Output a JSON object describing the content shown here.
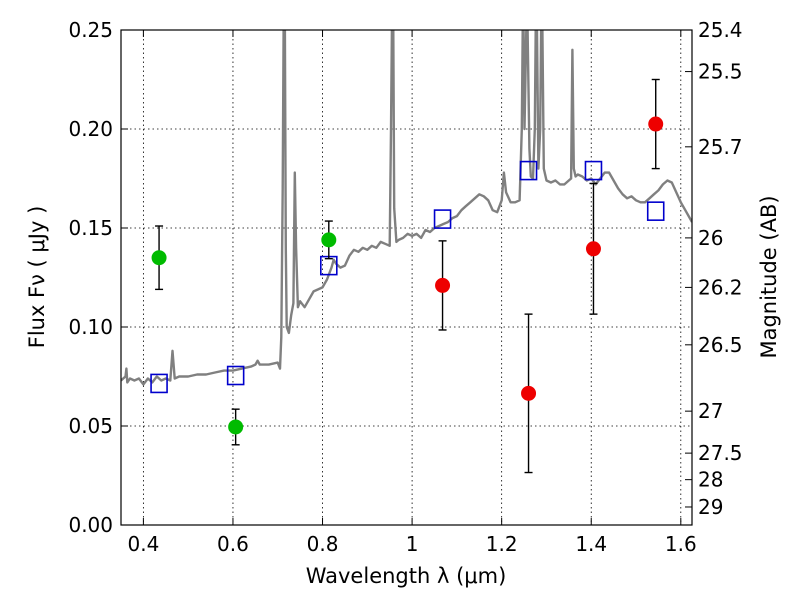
{
  "chart_data": {
    "type": "scatter",
    "xlabel": "Wavelength  λ (μm)",
    "ylabel": "Flux  Fν  ( μJy )",
    "y2label": "Magnitude (AB)",
    "xlim": [
      0.35,
      1.625
    ],
    "ylim": [
      0.0,
      0.25
    ],
    "grid": true,
    "x_ticks": [
      0.4,
      0.6,
      0.8,
      1.0,
      1.2,
      1.4,
      1.6
    ],
    "x_tick_labels": [
      "0.4",
      "0.6",
      "0.8",
      "1",
      "1.2",
      "1.4",
      "1.6"
    ],
    "y_ticks": [
      0.0,
      0.05,
      0.1,
      0.15,
      0.2,
      0.25
    ],
    "y_tick_labels": [
      "0.00",
      "0.05",
      "0.10",
      "0.15",
      "0.20",
      "0.25"
    ],
    "mag_ticks": [
      {
        "label": "25.4",
        "flux": 0.25
      },
      {
        "label": "25.5",
        "flux": 0.229
      },
      {
        "label": "25.7",
        "flux": 0.191
      },
      {
        "label": "26",
        "flux": 0.145
      },
      {
        "label": "26.2",
        "flux": 0.12
      },
      {
        "label": "26.5",
        "flux": 0.091
      },
      {
        "label": "27",
        "flux": 0.0575
      },
      {
        "label": "27.5",
        "flux": 0.0363
      },
      {
        "label": "28",
        "flux": 0.0229
      },
      {
        "label": "29",
        "flux": 0.0091
      }
    ],
    "series": [
      {
        "color": "#00bb00",
        "marker": "circle",
        "points": [
          {
            "x": 0.435,
            "y": 0.135,
            "err": 0.016
          },
          {
            "x": 0.606,
            "y": 0.0495,
            "err": 0.009
          },
          {
            "x": 0.814,
            "y": 0.144,
            "err": 0.0095
          }
        ]
      },
      {
        "color": "#ee0000",
        "marker": "circle",
        "points": [
          {
            "x": 1.068,
            "y": 0.121,
            "err": 0.0225
          },
          {
            "x": 1.26,
            "y": 0.0665,
            "err": 0.04
          },
          {
            "x": 1.405,
            "y": 0.1395,
            "err": 0.033
          },
          {
            "x": 1.544,
            "y": 0.2025,
            "err": 0.0225
          }
        ]
      },
      {
        "color": "#0000cc",
        "marker": "square-open",
        "points": [
          {
            "x": 0.435,
            "y": 0.0715
          },
          {
            "x": 0.606,
            "y": 0.0755
          },
          {
            "x": 0.814,
            "y": 0.131
          },
          {
            "x": 1.068,
            "y": 0.1545
          },
          {
            "x": 1.26,
            "y": 0.179
          },
          {
            "x": 1.405,
            "y": 0.179
          },
          {
            "x": 1.544,
            "y": 0.1585
          }
        ]
      }
    ],
    "spectrum": {
      "color": "#808080",
      "points": [
        [
          0.35,
          0.073
        ],
        [
          0.36,
          0.075
        ],
        [
          0.362,
          0.079
        ],
        [
          0.364,
          0.072
        ],
        [
          0.37,
          0.074
        ],
        [
          0.38,
          0.073
        ],
        [
          0.39,
          0.074
        ],
        [
          0.4,
          0.071
        ],
        [
          0.41,
          0.074
        ],
        [
          0.42,
          0.072
        ],
        [
          0.43,
          0.075
        ],
        [
          0.44,
          0.073
        ],
        [
          0.45,
          0.074
        ],
        [
          0.46,
          0.073
        ],
        [
          0.465,
          0.088
        ],
        [
          0.47,
          0.074
        ],
        [
          0.48,
          0.075
        ],
        [
          0.5,
          0.075
        ],
        [
          0.52,
          0.076
        ],
        [
          0.54,
          0.076
        ],
        [
          0.56,
          0.077
        ],
        [
          0.58,
          0.078
        ],
        [
          0.6,
          0.078
        ],
        [
          0.62,
          0.079
        ],
        [
          0.64,
          0.08
        ],
        [
          0.65,
          0.081
        ],
        [
          0.655,
          0.083
        ],
        [
          0.66,
          0.081
        ],
        [
          0.68,
          0.081
        ],
        [
          0.7,
          0.082
        ],
        [
          0.705,
          0.079
        ],
        [
          0.708,
          0.095
        ],
        [
          0.711,
          0.17
        ],
        [
          0.713,
          0.25
        ],
        [
          0.716,
          0.25
        ],
        [
          0.718,
          0.14
        ],
        [
          0.72,
          0.1
        ],
        [
          0.725,
          0.097
        ],
        [
          0.73,
          0.106
        ],
        [
          0.735,
          0.112
        ],
        [
          0.738,
          0.178
        ],
        [
          0.741,
          0.14
        ],
        [
          0.745,
          0.11
        ],
        [
          0.75,
          0.113
        ],
        [
          0.76,
          0.11
        ],
        [
          0.77,
          0.114
        ],
        [
          0.78,
          0.118
        ],
        [
          0.79,
          0.119
        ],
        [
          0.8,
          0.12
        ],
        [
          0.81,
          0.124
        ],
        [
          0.82,
          0.13
        ],
        [
          0.825,
          0.134
        ],
        [
          0.83,
          0.132
        ],
        [
          0.84,
          0.13
        ],
        [
          0.85,
          0.131
        ],
        [
          0.86,
          0.136
        ],
        [
          0.87,
          0.139
        ],
        [
          0.88,
          0.138
        ],
        [
          0.89,
          0.14
        ],
        [
          0.9,
          0.139
        ],
        [
          0.91,
          0.141
        ],
        [
          0.92,
          0.14
        ],
        [
          0.93,
          0.143
        ],
        [
          0.94,
          0.142
        ],
        [
          0.95,
          0.141
        ],
        [
          0.953,
          0.2
        ],
        [
          0.955,
          0.25
        ],
        [
          0.958,
          0.25
        ],
        [
          0.96,
          0.16
        ],
        [
          0.965,
          0.143
        ],
        [
          0.97,
          0.144
        ],
        [
          0.98,
          0.145
        ],
        [
          0.99,
          0.147
        ],
        [
          1.0,
          0.146
        ],
        [
          1.01,
          0.147
        ],
        [
          1.02,
          0.145
        ],
        [
          1.03,
          0.149
        ],
        [
          1.04,
          0.148
        ],
        [
          1.05,
          0.15
        ],
        [
          1.06,
          0.151
        ],
        [
          1.07,
          0.152
        ],
        [
          1.08,
          0.153
        ],
        [
          1.09,
          0.155
        ],
        [
          1.1,
          0.156
        ],
        [
          1.11,
          0.159
        ],
        [
          1.12,
          0.161
        ],
        [
          1.13,
          0.163
        ],
        [
          1.14,
          0.165
        ],
        [
          1.15,
          0.167
        ],
        [
          1.16,
          0.166
        ],
        [
          1.17,
          0.164
        ],
        [
          1.18,
          0.159
        ],
        [
          1.19,
          0.158
        ],
        [
          1.2,
          0.164
        ],
        [
          1.205,
          0.178
        ],
        [
          1.21,
          0.168
        ],
        [
          1.22,
          0.163
        ],
        [
          1.23,
          0.163
        ],
        [
          1.24,
          0.164
        ],
        [
          1.245,
          0.2
        ],
        [
          1.247,
          0.25
        ],
        [
          1.249,
          0.25
        ],
        [
          1.251,
          0.2
        ],
        [
          1.255,
          0.25
        ],
        [
          1.258,
          0.25
        ],
        [
          1.262,
          0.19
        ],
        [
          1.265,
          0.176
        ],
        [
          1.27,
          0.175
        ],
        [
          1.274,
          0.2
        ],
        [
          1.276,
          0.25
        ],
        [
          1.279,
          0.25
        ],
        [
          1.282,
          0.18
        ],
        [
          1.286,
          0.2
        ],
        [
          1.288,
          0.25
        ],
        [
          1.291,
          0.25
        ],
        [
          1.294,
          0.18
        ],
        [
          1.3,
          0.174
        ],
        [
          1.31,
          0.173
        ],
        [
          1.32,
          0.174
        ],
        [
          1.33,
          0.172
        ],
        [
          1.34,
          0.172
        ],
        [
          1.35,
          0.174
        ],
        [
          1.355,
          0.175
        ],
        [
          1.358,
          0.24
        ],
        [
          1.361,
          0.18
        ],
        [
          1.365,
          0.176
        ],
        [
          1.37,
          0.177
        ],
        [
          1.38,
          0.176
        ],
        [
          1.39,
          0.174
        ],
        [
          1.4,
          0.175
        ],
        [
          1.41,
          0.172
        ],
        [
          1.42,
          0.175
        ],
        [
          1.43,
          0.178
        ],
        [
          1.44,
          0.178
        ],
        [
          1.45,
          0.174
        ],
        [
          1.46,
          0.17
        ],
        [
          1.47,
          0.167
        ],
        [
          1.48,
          0.165
        ],
        [
          1.49,
          0.166
        ],
        [
          1.5,
          0.164
        ],
        [
          1.51,
          0.163
        ],
        [
          1.52,
          0.163
        ],
        [
          1.53,
          0.165
        ],
        [
          1.54,
          0.167
        ],
        [
          1.55,
          0.169
        ],
        [
          1.56,
          0.172
        ],
        [
          1.57,
          0.174
        ],
        [
          1.58,
          0.173
        ],
        [
          1.59,
          0.168
        ],
        [
          1.6,
          0.163
        ],
        [
          1.61,
          0.159
        ],
        [
          1.62,
          0.155
        ],
        [
          1.625,
          0.153
        ]
      ]
    }
  }
}
